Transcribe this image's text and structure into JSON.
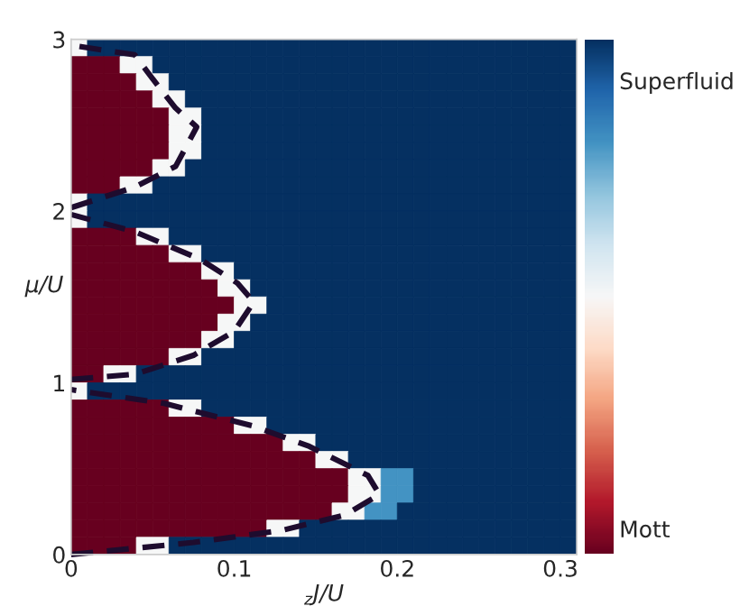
{
  "chart_data": {
    "type": "heatmap",
    "xlabel": "$_{z}$J/U",
    "ylabel": "μ/U",
    "xlim": [
      0,
      0.31
    ],
    "ylim": [
      0,
      3
    ],
    "xticks": [
      0,
      0.1,
      0.2,
      0.3
    ],
    "yticks": [
      0,
      1,
      2,
      3
    ],
    "clim": [
      0,
      1
    ],
    "cticks": [
      {
        "value": 0.92,
        "label": "Superfluid"
      },
      {
        "value": 0.05,
        "label": "Mott"
      }
    ],
    "cells": [
      [
        0.5,
        1,
        1,
        1,
        1,
        1,
        1,
        1,
        1,
        1,
        1,
        1,
        1,
        1,
        1,
        1,
        1,
        1,
        1,
        1,
        1,
        1,
        1,
        1,
        1,
        1,
        1,
        1,
        1,
        1,
        1
      ],
      [
        0,
        0,
        0,
        0.5,
        0.5,
        1,
        1,
        1,
        1,
        1,
        1,
        1,
        1,
        1,
        1,
        1,
        1,
        1,
        1,
        1,
        1,
        1,
        1,
        1,
        1,
        1,
        1,
        1,
        1,
        1,
        1
      ],
      [
        0,
        0,
        0,
        0,
        0.5,
        0.5,
        1,
        1,
        1,
        1,
        1,
        1,
        1,
        1,
        1,
        1,
        1,
        1,
        1,
        1,
        1,
        1,
        1,
        1,
        1,
        1,
        1,
        1,
        1,
        1,
        1
      ],
      [
        0,
        0,
        0,
        0,
        0,
        0.5,
        0.5,
        1,
        1,
        1,
        1,
        1,
        1,
        1,
        1,
        1,
        1,
        1,
        1,
        1,
        1,
        1,
        1,
        1,
        1,
        1,
        1,
        1,
        1,
        1,
        1
      ],
      [
        0,
        0,
        0,
        0,
        0,
        0,
        0.5,
        0.5,
        1,
        1,
        1,
        1,
        1,
        1,
        1,
        1,
        1,
        1,
        1,
        1,
        1,
        1,
        1,
        1,
        1,
        1,
        1,
        1,
        1,
        1,
        1
      ],
      [
        0,
        0,
        0,
        0,
        0,
        0,
        0.5,
        0.5,
        1,
        1,
        1,
        1,
        1,
        1,
        1,
        1,
        1,
        1,
        1,
        1,
        1,
        1,
        1,
        1,
        1,
        1,
        1,
        1,
        1,
        1,
        1
      ],
      [
        0,
        0,
        0,
        0,
        0,
        0,
        0.5,
        0.5,
        1,
        1,
        1,
        1,
        1,
        1,
        1,
        1,
        1,
        1,
        1,
        1,
        1,
        1,
        1,
        1,
        1,
        1,
        1,
        1,
        1,
        1,
        1
      ],
      [
        0,
        0,
        0,
        0,
        0,
        0.5,
        0.5,
        1,
        1,
        1,
        1,
        1,
        1,
        1,
        1,
        1,
        1,
        1,
        1,
        1,
        1,
        1,
        1,
        1,
        1,
        1,
        1,
        1,
        1,
        1,
        1
      ],
      [
        0,
        0,
        0,
        0.5,
        0.5,
        1,
        1,
        1,
        1,
        1,
        1,
        1,
        1,
        1,
        1,
        1,
        1,
        1,
        1,
        1,
        1,
        1,
        1,
        1,
        1,
        1,
        1,
        1,
        1,
        1,
        1
      ],
      [
        0.5,
        1,
        1,
        1,
        1,
        1,
        1,
        1,
        1,
        1,
        1,
        1,
        1,
        1,
        1,
        1,
        1,
        1,
        1,
        1,
        1,
        1,
        1,
        1,
        1,
        1,
        1,
        1,
        1,
        1,
        1
      ],
      [
        0.5,
        1,
        1,
        1,
        1,
        1,
        1,
        1,
        1,
        1,
        1,
        1,
        1,
        1,
        1,
        1,
        1,
        1,
        1,
        1,
        1,
        1,
        1,
        1,
        1,
        1,
        1,
        1,
        1,
        1,
        1
      ],
      [
        0,
        0,
        0,
        0,
        0.5,
        0.5,
        1,
        1,
        1,
        1,
        1,
        1,
        1,
        1,
        1,
        1,
        1,
        1,
        1,
        1,
        1,
        1,
        1,
        1,
        1,
        1,
        1,
        1,
        1,
        1,
        1
      ],
      [
        0,
        0,
        0,
        0,
        0,
        0,
        0.5,
        0.5,
        1,
        1,
        1,
        1,
        1,
        1,
        1,
        1,
        1,
        1,
        1,
        1,
        1,
        1,
        1,
        1,
        1,
        1,
        1,
        1,
        1,
        1,
        1
      ],
      [
        0,
        0,
        0,
        0,
        0,
        0,
        0,
        0,
        0.5,
        0.5,
        1,
        1,
        1,
        1,
        1,
        1,
        1,
        1,
        1,
        1,
        1,
        1,
        1,
        1,
        1,
        1,
        1,
        1,
        1,
        1,
        1
      ],
      [
        0,
        0,
        0,
        0,
        0,
        0,
        0,
        0,
        0,
        0.5,
        0.5,
        1,
        1,
        1,
        1,
        1,
        1,
        1,
        1,
        1,
        1,
        1,
        1,
        1,
        1,
        1,
        1,
        1,
        1,
        1,
        1
      ],
      [
        0,
        0,
        0,
        0,
        0,
        0,
        0,
        0,
        0,
        0,
        0.5,
        0.5,
        1,
        1,
        1,
        1,
        1,
        1,
        1,
        1,
        1,
        1,
        1,
        1,
        1,
        1,
        1,
        1,
        1,
        1,
        1
      ],
      [
        0,
        0,
        0,
        0,
        0,
        0,
        0,
        0,
        0,
        0.5,
        0.5,
        1,
        1,
        1,
        1,
        1,
        1,
        1,
        1,
        1,
        1,
        1,
        1,
        1,
        1,
        1,
        1,
        1,
        1,
        1,
        1
      ],
      [
        0,
        0,
        0,
        0,
        0,
        0,
        0,
        0,
        0.5,
        0.5,
        1,
        1,
        1,
        1,
        1,
        1,
        1,
        1,
        1,
        1,
        1,
        1,
        1,
        1,
        1,
        1,
        1,
        1,
        1,
        1,
        1
      ],
      [
        0,
        0,
        0,
        0,
        0,
        0,
        0.5,
        0.5,
        1,
        1,
        1,
        1,
        1,
        1,
        1,
        1,
        1,
        1,
        1,
        1,
        1,
        1,
        1,
        1,
        1,
        1,
        1,
        1,
        1,
        1,
        1
      ],
      [
        0,
        0,
        0.5,
        0.5,
        1,
        1,
        1,
        1,
        1,
        1,
        1,
        1,
        1,
        1,
        1,
        1,
        1,
        1,
        1,
        1,
        1,
        1,
        1,
        1,
        1,
        1,
        1,
        1,
        1,
        1,
        1
      ],
      [
        0.5,
        1,
        1,
        1,
        1,
        1,
        1,
        1,
        1,
        1,
        1,
        1,
        1,
        1,
        1,
        1,
        1,
        1,
        1,
        1,
        1,
        1,
        1,
        1,
        1,
        1,
        1,
        1,
        1,
        1,
        1
      ],
      [
        0,
        0,
        0,
        0,
        0,
        0,
        0.5,
        0.5,
        1,
        1,
        1,
        1,
        1,
        1,
        1,
        1,
        1,
        1,
        1,
        1,
        1,
        1,
        1,
        1,
        1,
        1,
        1,
        1,
        1,
        1,
        1
      ],
      [
        0,
        0,
        0,
        0,
        0,
        0,
        0,
        0,
        0,
        0,
        0.5,
        0.5,
        1,
        1,
        1,
        1,
        1,
        1,
        1,
        1,
        1,
        1,
        1,
        1,
        1,
        1,
        1,
        1,
        1,
        1,
        1
      ],
      [
        0,
        0,
        0,
        0,
        0,
        0,
        0,
        0,
        0,
        0,
        0,
        0,
        0,
        0.5,
        0.5,
        1,
        1,
        1,
        1,
        1,
        1,
        1,
        1,
        1,
        1,
        1,
        1,
        1,
        1,
        1,
        1
      ],
      [
        0,
        0,
        0,
        0,
        0,
        0,
        0,
        0,
        0,
        0,
        0,
        0,
        0,
        0,
        0,
        0.5,
        0.5,
        1,
        1,
        1,
        1,
        1,
        1,
        1,
        1,
        1,
        1,
        1,
        1,
        1,
        1
      ],
      [
        0,
        0,
        0,
        0,
        0,
        0,
        0,
        0,
        0,
        0,
        0,
        0,
        0,
        0,
        0,
        0,
        0,
        0.5,
        0.5,
        0.8,
        0.8,
        1,
        1,
        1,
        1,
        1,
        1,
        1,
        1,
        1,
        1
      ],
      [
        0,
        0,
        0,
        0,
        0,
        0,
        0,
        0,
        0,
        0,
        0,
        0,
        0,
        0,
        0,
        0,
        0,
        0.5,
        0.5,
        0.8,
        0.8,
        1,
        1,
        1,
        1,
        1,
        1,
        1,
        1,
        1,
        1
      ],
      [
        0,
        0,
        0,
        0,
        0,
        0,
        0,
        0,
        0,
        0,
        0,
        0,
        0,
        0,
        0,
        0,
        0.5,
        0.5,
        0.8,
        0.8,
        1,
        1,
        1,
        1,
        1,
        1,
        1,
        1,
        1,
        1,
        1
      ],
      [
        0,
        0,
        0,
        0,
        0,
        0,
        0,
        0,
        0,
        0,
        0,
        0,
        0.5,
        0.5,
        1,
        1,
        1,
        1,
        1,
        1,
        1,
        1,
        1,
        1,
        1,
        1,
        1,
        1,
        1,
        1,
        1
      ],
      [
        0,
        0,
        0,
        0,
        0.5,
        0.5,
        1,
        1,
        1,
        1,
        1,
        1,
        1,
        1,
        1,
        1,
        1,
        1,
        1,
        1,
        1,
        1,
        1,
        1,
        1,
        1,
        1,
        1,
        1,
        1,
        1
      ]
    ],
    "series": [
      {
        "type": "line",
        "color": "#1e0c2e",
        "x": [
          0,
          0.075,
          0.129,
          0.168,
          0.189,
          0.182,
          0.146,
          0.111,
          0.057,
          0
        ],
        "values": [
          0,
          0.07,
          0.14,
          0.23,
          0.35,
          0.46,
          0.63,
          0.75,
          0.88,
          0.96
        ]
      },
      {
        "type": "line",
        "color": "#1e0c2e",
        "x": [
          0,
          0.039,
          0.075,
          0.1,
          0.112,
          0.102,
          0.079,
          0.039,
          0
        ],
        "values": [
          1.02,
          1.05,
          1.16,
          1.3,
          1.47,
          1.58,
          1.72,
          1.88,
          1.98
        ]
      },
      {
        "type": "line",
        "color": "#1e0c2e",
        "x": [
          0,
          0.039,
          0.064,
          0.077,
          0.064,
          0.05,
          0.039,
          0.004
        ],
        "values": [
          2.02,
          2.14,
          2.26,
          2.49,
          2.6,
          2.77,
          2.91,
          2.96
        ]
      }
    ],
    "line_style": "dashed",
    "marker": "none"
  }
}
